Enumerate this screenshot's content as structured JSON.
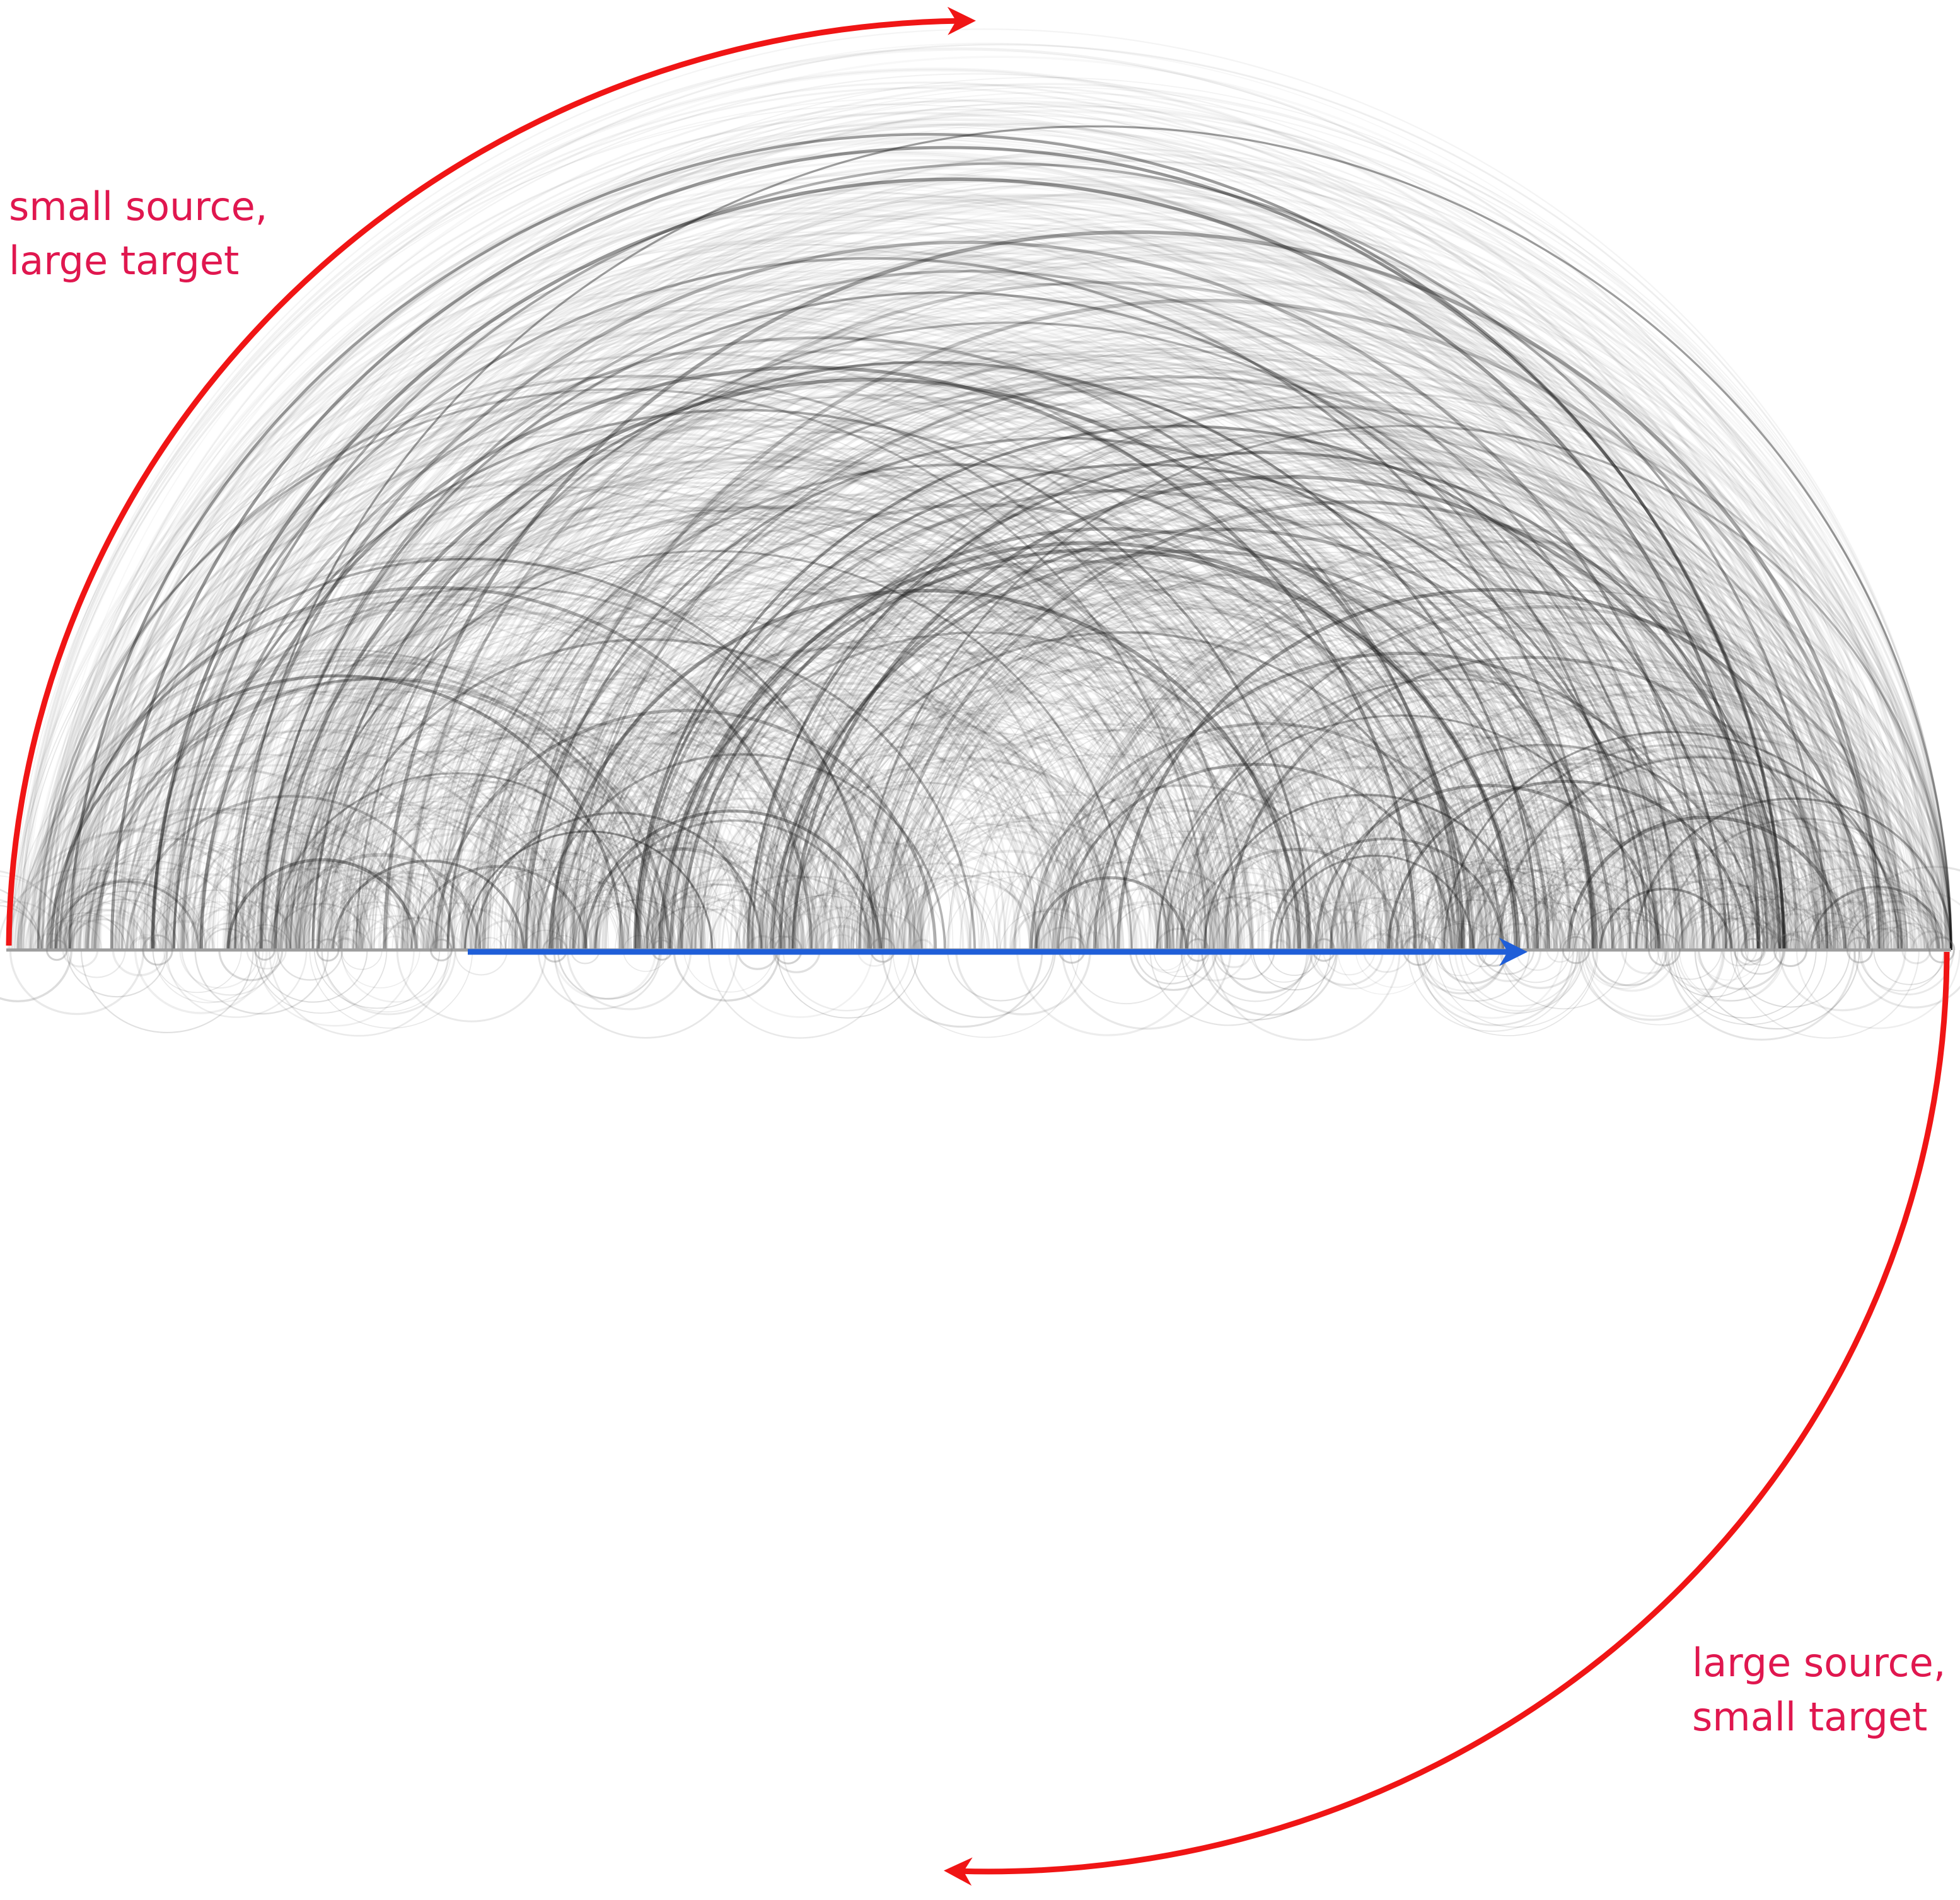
{
  "annotations": {
    "top_left": {
      "line1": "small source,",
      "line2": "large target"
    },
    "bottom_right": {
      "line1": "large source,",
      "line2": "small target"
    }
  },
  "colors": {
    "annotation_text": "#e0174f",
    "red_arrow": "#f01515",
    "blue_arrow": "#1f5ed8",
    "edges": "#1a1a1a",
    "axis": "#9e9e9e"
  }
}
